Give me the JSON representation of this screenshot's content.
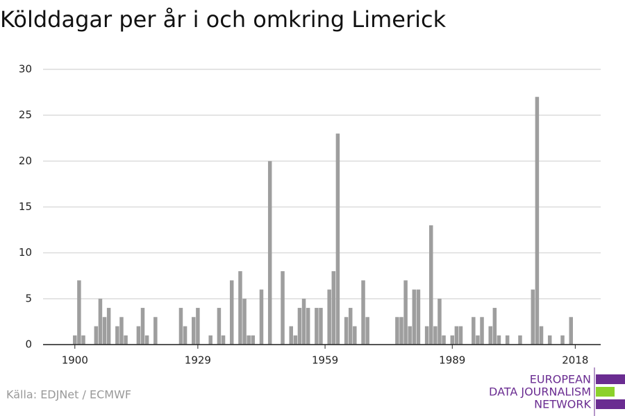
{
  "chart_data": {
    "type": "bar",
    "title": "Kölddagar per år i och omkring Limerick",
    "source": "Källa: EDJNet / ECMWF",
    "logo": [
      "EUROPEAN",
      "DATA JOURNALISM",
      "NETWORK"
    ],
    "color": "#9e9e9e",
    "x": [
      1900,
      1901,
      1902,
      1905,
      1906,
      1907,
      1908,
      1910,
      1911,
      1912,
      1915,
      1916,
      1917,
      1919,
      1925,
      1926,
      1928,
      1929,
      1932,
      1934,
      1935,
      1937,
      1939,
      1940,
      1941,
      1942,
      1944,
      1946,
      1949,
      1951,
      1952,
      1953,
      1954,
      1955,
      1957,
      1958,
      1960,
      1961,
      1962,
      1964,
      1965,
      1966,
      1968,
      1969,
      1976,
      1977,
      1978,
      1979,
      1980,
      1981,
      1983,
      1984,
      1985,
      1986,
      1987,
      1989,
      1990,
      1991,
      1994,
      1995,
      1996,
      1998,
      1999,
      2000,
      2002,
      2005,
      2008,
      2009,
      2010,
      2012,
      2015,
      2017
    ],
    "values": [
      1,
      7,
      1,
      2,
      5,
      3,
      4,
      2,
      3,
      1,
      2,
      4,
      1,
      3,
      4,
      2,
      3,
      4,
      1,
      4,
      1,
      7,
      8,
      5,
      1,
      1,
      6,
      20,
      8,
      2,
      1,
      4,
      5,
      4,
      4,
      4,
      6,
      8,
      23,
      3,
      4,
      2,
      7,
      3,
      3,
      3,
      7,
      2,
      6,
      6,
      2,
      13,
      2,
      5,
      1,
      1,
      2,
      2,
      3,
      1,
      3,
      2,
      4,
      1,
      1,
      1,
      6,
      27,
      2,
      1,
      1,
      3
    ],
    "xlim": [
      1893,
      2024.5
    ],
    "xticks": [
      1900,
      1929,
      1959,
      1989,
      2018
    ],
    "ylim": [
      0,
      30
    ],
    "yticks": [
      0,
      5,
      10,
      15,
      20,
      25,
      30
    ],
    "grid": true
  }
}
